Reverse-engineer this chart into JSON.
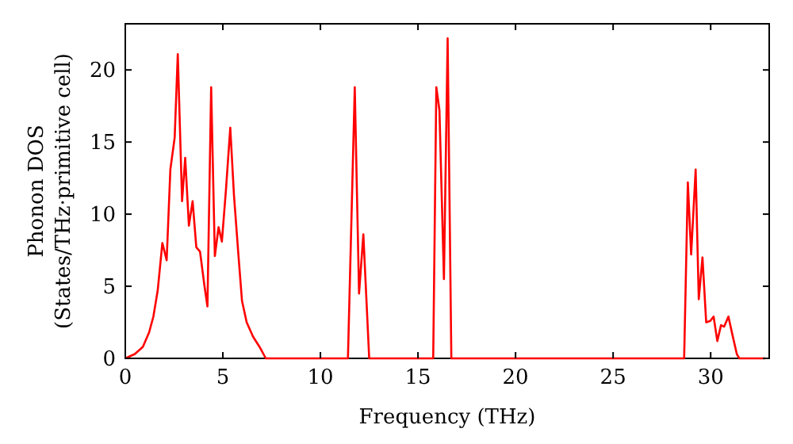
{
  "chart_data": {
    "type": "line",
    "xlabel": "Frequency (THz)",
    "ylabel": "Phonon DOS\n(States/THz·primitive cell)",
    "xlim": [
      0,
      33
    ],
    "ylim": [
      0,
      23.2
    ],
    "xticks": [
      0,
      5,
      10,
      15,
      20,
      25,
      30
    ],
    "yticks": [
      0,
      5,
      10,
      15,
      20
    ],
    "grid": false,
    "marker": "none",
    "line_style": "solid",
    "series": [
      {
        "color": "#ff0000",
        "x": [
          0,
          0.49,
          0.9,
          1.22,
          1.44,
          1.66,
          1.9,
          2.12,
          2.31,
          2.53,
          2.69,
          2.91,
          3.07,
          3.26,
          3.45,
          3.64,
          3.83,
          4.05,
          4.21,
          4.4,
          4.59,
          4.78,
          4.95,
          5.16,
          5.38,
          5.57,
          5.79,
          5.98,
          6.22,
          6.55,
          6.88,
          7.2,
          11.41,
          11.76,
          11.98,
          12.2,
          12.5,
          15.78,
          15.94,
          16.1,
          16.33,
          16.52,
          16.71,
          28.64,
          28.83,
          29.0,
          29.23,
          29.39,
          29.58,
          29.77,
          29.98,
          30.15,
          30.34,
          30.53,
          30.69,
          30.91,
          31.12,
          31.34,
          31.47,
          32.8
        ],
        "values": [
          0,
          0.3,
          0.8,
          1.8,
          2.9,
          4.7,
          8.0,
          6.8,
          13.1,
          15.3,
          21.1,
          10.9,
          13.9,
          9.2,
          10.9,
          7.7,
          7.4,
          5.1,
          3.6,
          18.8,
          7.1,
          9.1,
          8.1,
          11.7,
          16.0,
          11.3,
          7.3,
          4.0,
          2.5,
          1.5,
          0.8,
          0,
          0,
          18.8,
          4.5,
          8.6,
          0,
          0,
          18.8,
          17.2,
          5.5,
          22.2,
          0,
          0,
          12.2,
          7.2,
          13.1,
          4.1,
          7.0,
          2.5,
          2.6,
          2.9,
          1.2,
          2.3,
          2.2,
          2.9,
          1.6,
          0.3,
          0,
          0
        ]
      }
    ]
  }
}
